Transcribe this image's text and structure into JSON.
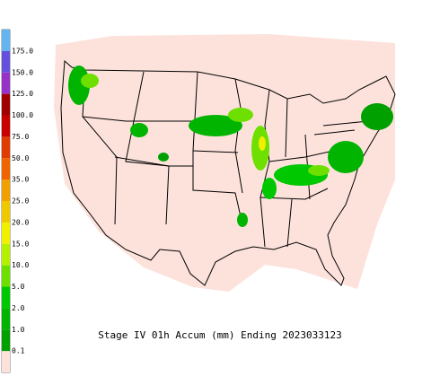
{
  "title": "Stage IV 01h Accum (mm) Ending 2023033123",
  "legend": {
    "bottom_color": "#fde2dc",
    "items": [
      {
        "label": "0.1",
        "color": "#00a000"
      },
      {
        "label": "1.0",
        "color": "#00b400"
      },
      {
        "label": "2.0",
        "color": "#00c800"
      },
      {
        "label": "5.0",
        "color": "#6ee000"
      },
      {
        "label": "10.0",
        "color": "#b4f000"
      },
      {
        "label": "15.0",
        "color": "#f0f000"
      },
      {
        "label": "20.0",
        "color": "#f0c800"
      },
      {
        "label": "25.0",
        "color": "#f0a000"
      },
      {
        "label": "35.0",
        "color": "#f06400"
      },
      {
        "label": "50.0",
        "color": "#e03c00"
      },
      {
        "label": "75.0",
        "color": "#c80000"
      },
      {
        "label": "100.0",
        "color": "#a00000"
      },
      {
        "label": "125.0",
        "color": "#9632c8"
      },
      {
        "label": "150.0",
        "color": "#6450dc"
      },
      {
        "label": "175.0",
        "color": "#3c78f0"
      }
    ],
    "top_color": "#64b4f0"
  }
}
